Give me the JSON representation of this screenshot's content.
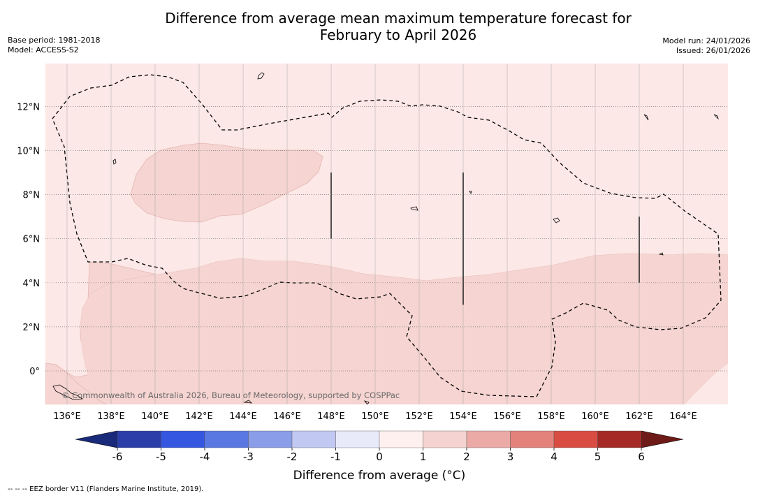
{
  "title": {
    "line1": "Difference from average mean maximum temperature forecast for",
    "line2": "February to April 2026"
  },
  "meta": {
    "base_period": "Base period: 1981-2018",
    "model": "Model: ACCESS-S2",
    "model_run": "Model run: 24/01/2026",
    "issued": "Issued: 26/01/2026"
  },
  "map": {
    "lon_range": [
      135,
      166
    ],
    "lat_range": [
      -1.5,
      14
    ],
    "lon_ticks": [
      136,
      138,
      140,
      142,
      144,
      146,
      148,
      150,
      152,
      154,
      156,
      158,
      160,
      162,
      164
    ],
    "lon_labels": [
      "136°E",
      "138°E",
      "140°E",
      "142°E",
      "144°E",
      "146°E",
      "148°E",
      "150°E",
      "152°E",
      "154°E",
      "156°E",
      "158°E",
      "160°E",
      "162°E",
      "164°E"
    ],
    "lat_ticks": [
      0,
      2,
      4,
      6,
      8,
      10,
      12
    ],
    "lat_labels": [
      "0°",
      "2°N",
      "4°N",
      "6°N",
      "8°N",
      "10°N",
      "12°N"
    ],
    "background_category": "0 to 1",
    "watermark": "© Commonwealth of Australia 2026, Bureau of Meteorology, supported by COSPPac",
    "colors": {
      "band_0_1": "#fce8e6",
      "band_1_2": "#f5d4d1",
      "boundary": "#000000",
      "grid": "#999999"
    },
    "eez_markers": [
      {
        "lon": 148,
        "lat_from": 6,
        "lat_to": 9
      },
      {
        "lon": 154,
        "lat_from": 3,
        "lat_to": 9
      },
      {
        "lon": 162,
        "lat_from": 4,
        "lat_to": 7
      }
    ]
  },
  "colorbar": {
    "tick_labels": [
      "-6",
      "-5",
      "-4",
      "-3",
      "-2",
      "-1",
      "0",
      "1",
      "2",
      "3",
      "4",
      "5",
      "6"
    ],
    "colors": [
      "#2b3da8",
      "#3456e0",
      "#5a78e2",
      "#8a9de8",
      "#c1c8f2",
      "#e8eafa",
      "#fdf0ef",
      "#f5d3d0",
      "#ebaaa6",
      "#e3827b",
      "#d84c42",
      "#a52a25"
    ],
    "extend_low": "#1a2a7a",
    "extend_high": "#6e1a18",
    "label": "Difference from average (°C)"
  },
  "footer": "--  --  -- EEZ border V11 (Flanders Marine Institute, 2019)."
}
